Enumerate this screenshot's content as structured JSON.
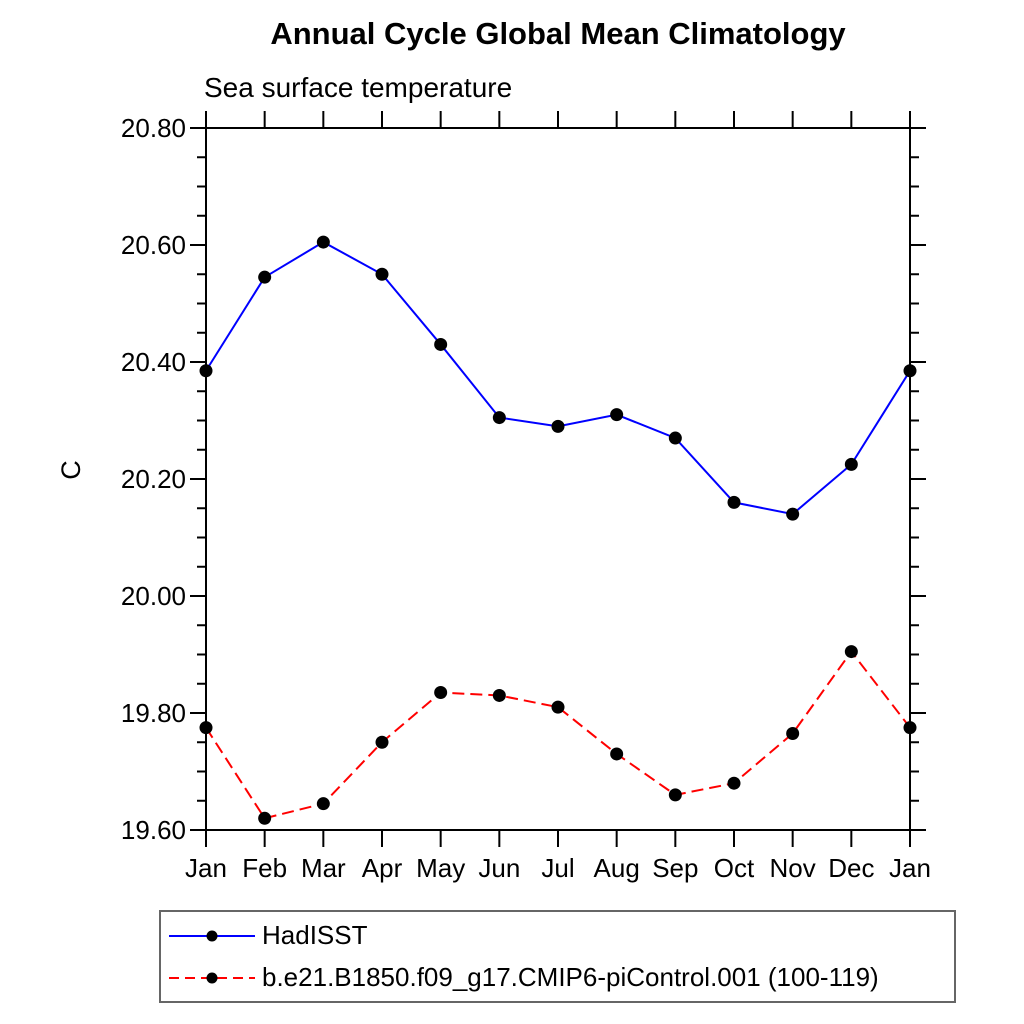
{
  "chart_data": {
    "type": "line",
    "title": "Annual Cycle Global Mean Climatology",
    "subtitle": "Sea surface temperature",
    "ylabel": "C",
    "xlabel": "",
    "categories": [
      "Jan",
      "Feb",
      "Mar",
      "Apr",
      "May",
      "Jun",
      "Jul",
      "Aug",
      "Sep",
      "Oct",
      "Nov",
      "Dec",
      "Jan"
    ],
    "ylim": [
      19.6,
      20.8
    ],
    "ytick_labels": [
      "19.60",
      "19.80",
      "20.00",
      "20.20",
      "20.40",
      "20.60",
      "20.80"
    ],
    "ytick_step": 0.2,
    "yminor_step": 0.05,
    "grid": false,
    "legend_position": "bottom-left",
    "marker": "filled-circle",
    "marker_color": "#000000",
    "axis_color": "#000000",
    "series": [
      {
        "name": "HadISST",
        "color": "#0000ff",
        "dash": "solid",
        "values": [
          20.385,
          20.545,
          20.605,
          20.55,
          20.43,
          20.305,
          20.29,
          20.31,
          20.27,
          20.16,
          20.14,
          20.225,
          20.385
        ]
      },
      {
        "name": "b.e21.B1850.f09_g17.CMIP6-piControl.001 (100-119)",
        "color": "#ff0000",
        "dash": "dashed",
        "values": [
          19.775,
          19.62,
          19.645,
          19.75,
          19.835,
          19.83,
          19.81,
          19.73,
          19.66,
          19.68,
          19.765,
          19.905,
          19.775
        ]
      }
    ]
  },
  "legend": {
    "entries": [
      {
        "label": "HadISST",
        "color": "#0000ff",
        "style": "solid"
      },
      {
        "label": "b.e21.B1850.f09_g17.CMIP6-piControl.001 (100-119)",
        "color": "#ff0000",
        "style": "dashed"
      }
    ]
  }
}
